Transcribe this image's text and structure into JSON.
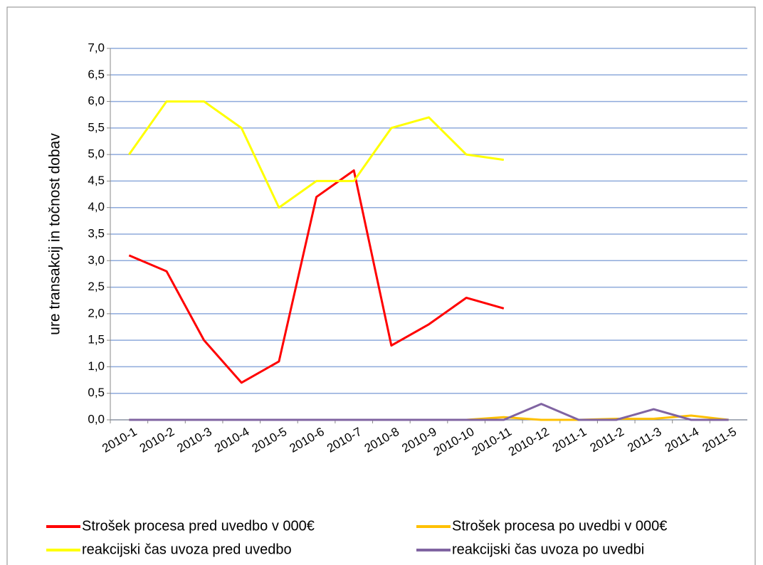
{
  "chart_data": {
    "type": "line",
    "y_label": "ure transakcij in točnost dobav",
    "categories": [
      "2010-1",
      "2010-2",
      "2010-3",
      "2010-4",
      "2010-5",
      "2010-6",
      "2010-7",
      "2010-8",
      "2010-9",
      "2010-10",
      "2010-11",
      "2010-12",
      "2011-1",
      "2011-2",
      "2011-3",
      "2011-4",
      "2011-5"
    ],
    "series": [
      {
        "name": "Strošek procesa pred uvedbo v 000€",
        "color": "#ff0000",
        "values": [
          3.1,
          2.8,
          1.5,
          0.7,
          1.1,
          4.2,
          4.7,
          1.4,
          1.8,
          2.3,
          2.1,
          null,
          null,
          null,
          null,
          null,
          null
        ]
      },
      {
        "name": "Strošek procesa po uvedbi v 000€",
        "color": "#ffc000",
        "values": [
          0,
          0,
          0,
          0,
          0,
          0,
          0,
          0,
          0,
          0,
          0.05,
          0,
          0,
          0.02,
          0.02,
          0.08,
          0
        ]
      },
      {
        "name": "reakcijski čas uvoza pred uvedbo",
        "color": "#ffff00",
        "values": [
          5.0,
          6.0,
          6.0,
          5.5,
          4.0,
          4.5,
          4.5,
          5.5,
          5.7,
          5.0,
          4.9,
          null,
          null,
          null,
          null,
          null,
          null
        ]
      },
      {
        "name": "reakcijski čas uvoza po uvedbi",
        "color": "#8064a2",
        "values": [
          0,
          0,
          0,
          0,
          0,
          0,
          0,
          0,
          0,
          0,
          0,
          0.3,
          0,
          0,
          0.2,
          0,
          0
        ]
      }
    ],
    "ylim": [
      0,
      7
    ],
    "yticks": [
      {
        "value": 0,
        "label": "0,0"
      },
      {
        "value": 0.5,
        "label": "0,5"
      },
      {
        "value": 1,
        "label": "1,0"
      },
      {
        "value": 1.5,
        "label": "1,5"
      },
      {
        "value": 2,
        "label": "2,0"
      },
      {
        "value": 2.5,
        "label": "2,5"
      },
      {
        "value": 3,
        "label": "3,0"
      },
      {
        "value": 3.5,
        "label": "3,5"
      },
      {
        "value": 4,
        "label": "4,0"
      },
      {
        "value": 4.5,
        "label": "4,5"
      },
      {
        "value": 5,
        "label": "5,0"
      },
      {
        "value": 5.5,
        "label": "5,5"
      },
      {
        "value": 6,
        "label": "6,0"
      },
      {
        "value": 6.5,
        "label": "6,5"
      },
      {
        "value": 7,
        "label": "7,0"
      }
    ],
    "grid": true,
    "legend": "bottom"
  }
}
